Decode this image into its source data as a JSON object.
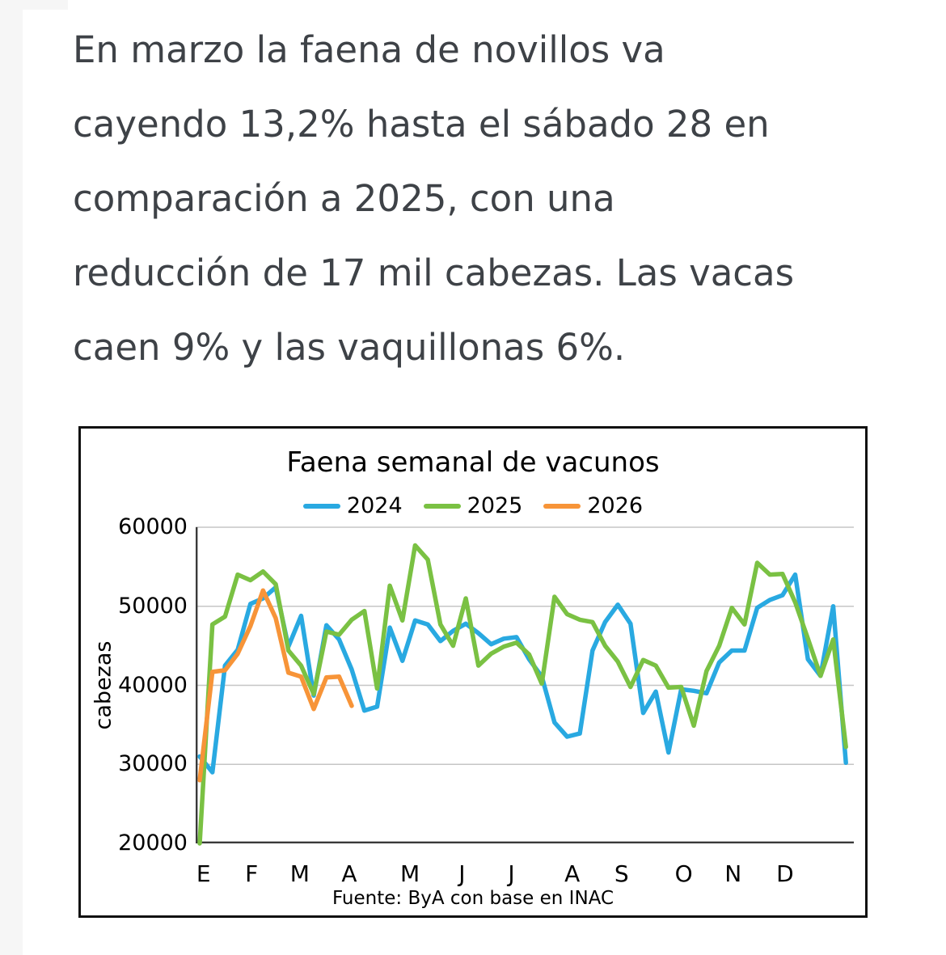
{
  "article": {
    "paragraph_lines": [
      "En marzo la faena de novillos va",
      "cayendo 13,2% hasta el sábado 28 en",
      "comparación a 2025, con una",
      "reducción de 17 mil cabezas. Las vacas",
      "caen 9% y las vaquillonas 6%."
    ],
    "text_color": "#3e4247"
  },
  "chart": {
    "title": "Faena semanal de vacunos",
    "ylabel": "cabezas",
    "source": "Fuente: ByA con base en INAC"
  },
  "chart_data": {
    "type": "line",
    "title": "Faena semanal de vacunos",
    "ylabel": "cabezas",
    "x_unit": "week of year",
    "ylim": [
      20000,
      60000
    ],
    "yticks": [
      60000,
      50000,
      40000,
      30000,
      20000
    ],
    "grid": true,
    "legend_position": "top",
    "month_labels": [
      "E",
      "F",
      "M",
      "A",
      "M",
      "J",
      "J",
      "A",
      "S",
      "O",
      "N",
      "D"
    ],
    "month_week_positions": [
      1.3,
      5.1,
      8.9,
      12.8,
      17.6,
      21.7,
      25.6,
      30.4,
      34.3,
      39.2,
      43.1,
      47.2
    ],
    "series": [
      {
        "name": "2024",
        "color": "#29a9e1",
        "values": [
          31000,
          29000,
          42500,
          44500,
          50300,
          51000,
          52400,
          44900,
          48800,
          38700,
          47600,
          45800,
          42000,
          36800,
          37300,
          47300,
          43100,
          48200,
          47700,
          45600,
          46900,
          47800,
          46600,
          45200,
          45900,
          46100,
          43300,
          41100,
          35300,
          33500,
          33900,
          44400,
          48000,
          50200,
          47800,
          36500,
          39200,
          31500,
          39500,
          39300,
          39000,
          42900,
          44400,
          44400,
          49800,
          50800,
          51400,
          54000,
          43300,
          41200,
          50000,
          30200
        ]
      },
      {
        "name": "2025",
        "color": "#7ac143",
        "values": [
          20000,
          47700,
          48700,
          54000,
          53300,
          54400,
          52800,
          44400,
          42500,
          38900,
          46800,
          46400,
          48300,
          49400,
          39600,
          52600,
          48200,
          57700,
          55900,
          47700,
          45000,
          51000,
          42500,
          44000,
          44900,
          45400,
          43900,
          40200,
          51200,
          49000,
          48300,
          48000,
          45000,
          43000,
          39800,
          43200,
          42500,
          39700,
          39800,
          34900,
          41800,
          45000,
          49800,
          47700,
          55500,
          54000,
          54100,
          50500,
          45900,
          41200,
          45800,
          32200
        ]
      },
      {
        "name": "2026",
        "color": "#f79438",
        "values": [
          28000,
          41700,
          41900,
          44000,
          47500,
          52000,
          48500,
          41600,
          41100,
          37000,
          41000,
          41100,
          37400
        ]
      }
    ],
    "source": "Fuente: ByA con base en INAC"
  }
}
